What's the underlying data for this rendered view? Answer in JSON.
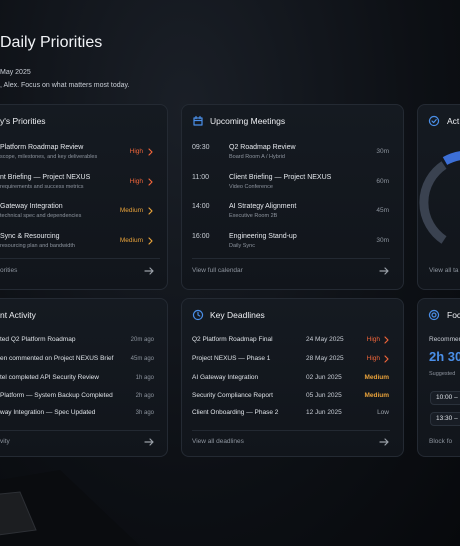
{
  "header": {
    "title": "Daily Priorities",
    "date": "May 2025",
    "greeting": ", Alex. Focus on what matters most today."
  },
  "priorities": {
    "title": "y's Priorities",
    "footer": "orities",
    "items": [
      {
        "title": "Platform Roadmap Review",
        "subtitle": "scope, milestones, and key deliverables",
        "priority": "High",
        "color": "#f0653a"
      },
      {
        "title": "nt Briefing — Project NEXUS",
        "subtitle": "requirements and success metrics",
        "priority": "High",
        "color": "#f0653a"
      },
      {
        "title": "Gateway Integration",
        "subtitle": "technical spec and dependencies",
        "priority": "Medium",
        "color": "#e8a23a"
      },
      {
        "title": "Sync & Resourcing",
        "subtitle": "resourcing plan and bandwidth",
        "priority": "Medium",
        "color": "#e8a23a"
      }
    ]
  },
  "meetings": {
    "title": "Upcoming Meetings",
    "footer": "View full calendar",
    "items": [
      {
        "time": "09:30",
        "title": "Q2 Roadmap Review",
        "location": "Board Room A / Hybrid",
        "duration": "30m"
      },
      {
        "time": "11:00",
        "title": "Client Briefing — Project NEXUS",
        "location": "Video Conference",
        "duration": "60m"
      },
      {
        "time": "14:00",
        "title": "AI Strategy Alignment",
        "location": "Executive Room 2B",
        "duration": "45m"
      },
      {
        "time": "16:00",
        "title": "Engineering Stand-up",
        "location": "Daily Sync",
        "duration": "30m"
      }
    ]
  },
  "actions": {
    "title": "Act",
    "footer": "View all ta"
  },
  "activity": {
    "title": "nt Activity",
    "footer": "vity",
    "items": [
      {
        "text": "ted Q2 Platform Roadmap",
        "time": "20m ago"
      },
      {
        "text": "en commented on Project NEXUS Brief",
        "time": "45m ago"
      },
      {
        "text": "tel completed API Security Review",
        "time": "1h ago"
      },
      {
        "text": "Platform — System Backup Completed",
        "time": "2h ago"
      },
      {
        "text": "way Integration — Spec Updated",
        "time": "3h ago"
      }
    ]
  },
  "deadlines": {
    "title": "Key Deadlines",
    "footer": "View all deadlines",
    "items": [
      {
        "title": "Q2 Platform Roadmap Final",
        "date": "24 May 2025",
        "priority": "High",
        "color": "#f0653a",
        "chevron": true
      },
      {
        "title": "Project NEXUS — Phase 1",
        "date": "28 May 2025",
        "priority": "High",
        "color": "#f0653a",
        "chevron": true
      },
      {
        "title": "AI Gateway Integration",
        "date": "02 Jun 2025",
        "priority": "Medium",
        "color": "#e8a23a",
        "chevron": false
      },
      {
        "title": "Security Compliance Report",
        "date": "05 Jun 2025",
        "priority": "Medium",
        "color": "#e8a23a",
        "chevron": false
      },
      {
        "title": "Client Onboarding — Phase 2",
        "date": "12 Jun 2025",
        "priority": "Low",
        "color": "#9aa0a8",
        "chevron": false
      }
    ]
  },
  "focus": {
    "title": "Foc",
    "label": "Recommen",
    "duration": "2h 30",
    "sublabel": "Suggested",
    "slots": [
      "10:00 –",
      "13:30 –"
    ],
    "footer": "Block fo"
  }
}
